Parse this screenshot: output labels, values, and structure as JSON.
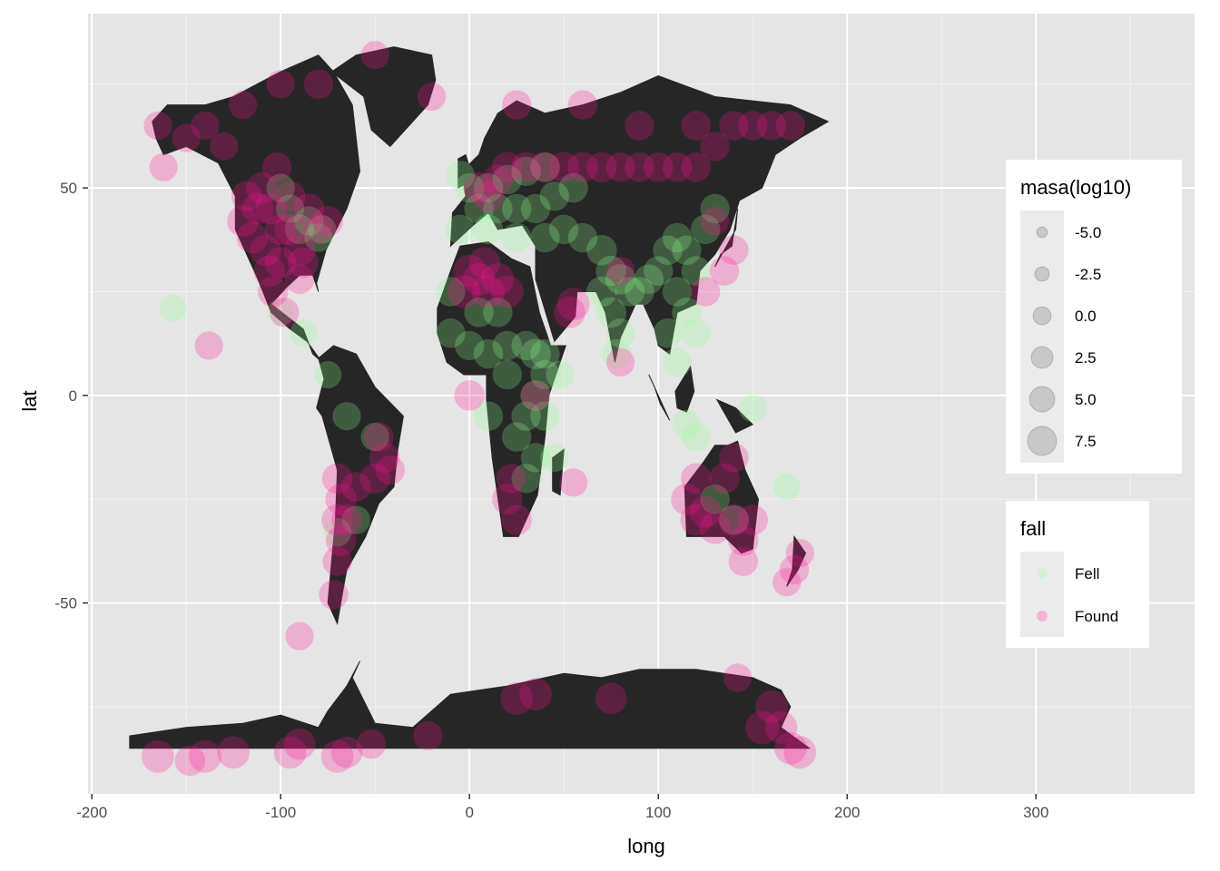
{
  "chart_data": {
    "type": "scatter",
    "xlabel": "long",
    "ylabel": "lat",
    "xlim": [
      -202,
      384
    ],
    "ylim": [
      -96,
      92
    ],
    "x_ticks": [
      -200,
      -100,
      0,
      100,
      200,
      300
    ],
    "x_tick_labels": [
      "-200",
      "-100",
      "0",
      "100",
      "200",
      "300"
    ],
    "y_ticks": [
      -50,
      0,
      50
    ],
    "y_tick_labels": [
      "-50",
      "0",
      "50"
    ],
    "grid": true,
    "background": "#e5e5e5",
    "land_color": "#262626",
    "legends": {
      "size": {
        "title": "masa(log10)",
        "labels": [
          "-5.0",
          "-2.5",
          "0.0",
          "2.5",
          "5.0",
          "7.5"
        ],
        "values": [
          -5.0,
          -2.5,
          0.0,
          2.5,
          5.0,
          7.5
        ]
      },
      "color": {
        "title": "fall",
        "labels": [
          "Fell",
          "Found"
        ],
        "colors": [
          "#90ff90",
          "#ff1493"
        ]
      }
    },
    "series": [
      {
        "name": "Fell",
        "color": "#90ff90",
        "points": [
          [
            -100,
            50,
            2.5
          ],
          [
            -95,
            45,
            2.5
          ],
          [
            -90,
            40,
            3
          ],
          [
            -80,
            38,
            2.5
          ],
          [
            -85,
            42,
            3
          ],
          [
            -78,
            40,
            2.5
          ],
          [
            -157,
            21,
            2
          ],
          [
            -100,
            20,
            2
          ],
          [
            -88,
            15,
            2
          ],
          [
            -75,
            5,
            2
          ],
          [
            -65,
            -5,
            2.5
          ],
          [
            -50,
            -10,
            2.5
          ],
          [
            -60,
            -30,
            2.5
          ],
          [
            -70,
            -33,
            2.5
          ],
          [
            0,
            50,
            3
          ],
          [
            10,
            50,
            3
          ],
          [
            20,
            52,
            3
          ],
          [
            30,
            54,
            3
          ],
          [
            40,
            55,
            3
          ],
          [
            -5,
            53,
            3
          ],
          [
            5,
            45,
            3
          ],
          [
            15,
            45,
            3
          ],
          [
            25,
            45,
            3
          ],
          [
            35,
            45,
            3
          ],
          [
            45,
            48,
            3
          ],
          [
            55,
            50,
            3
          ],
          [
            -5,
            40,
            3
          ],
          [
            10,
            40,
            3
          ],
          [
            25,
            38,
            3
          ],
          [
            40,
            38,
            3
          ],
          [
            50,
            40,
            3
          ],
          [
            60,
            38,
            3
          ],
          [
            70,
            35,
            3.5
          ],
          [
            75,
            30,
            3.5
          ],
          [
            80,
            28,
            3.5
          ],
          [
            85,
            25,
            3
          ],
          [
            75,
            20,
            3.5
          ],
          [
            80,
            15,
            3
          ],
          [
            78,
            10,
            3
          ],
          [
            70,
            25,
            3.5
          ],
          [
            90,
            25,
            3
          ],
          [
            95,
            28,
            3
          ],
          [
            100,
            30,
            3
          ],
          [
            105,
            35,
            3
          ],
          [
            110,
            38,
            3
          ],
          [
            115,
            35,
            3
          ],
          [
            120,
            30,
            3
          ],
          [
            125,
            40,
            3
          ],
          [
            130,
            45,
            3
          ],
          [
            110,
            25,
            3
          ],
          [
            115,
            20,
            3
          ],
          [
            105,
            15,
            3
          ],
          [
            120,
            15,
            3
          ],
          [
            110,
            8,
            3
          ],
          [
            -10,
            15,
            3
          ],
          [
            0,
            12,
            3
          ],
          [
            10,
            10,
            3
          ],
          [
            20,
            12,
            3
          ],
          [
            30,
            12,
            3
          ],
          [
            35,
            10,
            3.5
          ],
          [
            40,
            5,
            3
          ],
          [
            35,
            0,
            3.5
          ],
          [
            30,
            -5,
            3
          ],
          [
            25,
            -10,
            3
          ],
          [
            35,
            -15,
            3
          ],
          [
            30,
            -20,
            3
          ],
          [
            40,
            -5,
            3
          ],
          [
            45,
            -15,
            2.5
          ],
          [
            -10,
            25,
            3
          ],
          [
            5,
            20,
            3
          ],
          [
            15,
            20,
            3
          ],
          [
            20,
            5,
            3
          ],
          [
            10,
            -5,
            3
          ],
          [
            40,
            10,
            3
          ],
          [
            48,
            5,
            2.5
          ],
          [
            150,
            -3,
            2.5
          ],
          [
            168,
            -22,
            2
          ],
          [
            115,
            -7,
            3
          ],
          [
            140,
            -30,
            3
          ],
          [
            120,
            -10,
            3
          ],
          [
            130,
            -25,
            3
          ]
        ]
      },
      {
        "name": "Found",
        "color": "#ff1493",
        "points": [
          [
            -165,
            65,
            2.5
          ],
          [
            -150,
            62,
            2.5
          ],
          [
            -140,
            65,
            2.5
          ],
          [
            -130,
            60,
            2.5
          ],
          [
            -162,
            55,
            2.5
          ],
          [
            -120,
            70,
            2.5
          ],
          [
            -80,
            75,
            3
          ],
          [
            -50,
            82,
            2.5
          ],
          [
            -20,
            72,
            2.5
          ],
          [
            -100,
            75,
            2.5
          ],
          [
            -110,
            50,
            4
          ],
          [
            -105,
            45,
            4
          ],
          [
            -100,
            40,
            4
          ],
          [
            -108,
            35,
            4
          ],
          [
            -115,
            38,
            4
          ],
          [
            -112,
            45,
            4
          ],
          [
            -95,
            40,
            4
          ],
          [
            -90,
            35,
            4
          ],
          [
            -100,
            32,
            4
          ],
          [
            -106,
            30,
            4
          ],
          [
            -104,
            25,
            3.5
          ],
          [
            -98,
            20,
            3
          ],
          [
            -85,
            45,
            3.5
          ],
          [
            -80,
            40,
            3.5
          ],
          [
            -75,
            42,
            3.5
          ],
          [
            -88,
            32,
            3.5
          ],
          [
            -95,
            48,
            3.5
          ],
          [
            -120,
            42,
            4
          ],
          [
            -118,
            48,
            3.5
          ],
          [
            -102,
            55,
            3
          ],
          [
            -90,
            28,
            3
          ],
          [
            -138,
            12,
            2.5
          ],
          [
            -90,
            -58,
            2.5
          ],
          [
            -70,
            -20,
            3.5
          ],
          [
            -68,
            -25,
            4
          ],
          [
            -70,
            -30,
            4
          ],
          [
            -68,
            -35,
            3.5
          ],
          [
            -70,
            -40,
            3
          ],
          [
            -72,
            -48,
            3
          ],
          [
            -65,
            -30,
            3.5
          ],
          [
            -60,
            -22,
            3
          ],
          [
            -45,
            -15,
            3.5
          ],
          [
            -50,
            -20,
            3.5
          ],
          [
            -42,
            -18,
            3
          ],
          [
            -48,
            -10,
            3
          ],
          [
            0,
            30,
            4.5
          ],
          [
            -3,
            25,
            4.5
          ],
          [
            5,
            28,
            4.5
          ],
          [
            10,
            25,
            4.5
          ],
          [
            15,
            28,
            4.5
          ],
          [
            20,
            25,
            4.5
          ],
          [
            8,
            32,
            4
          ],
          [
            55,
            22,
            4.5
          ],
          [
            53,
            20,
            4
          ],
          [
            0,
            0,
            3.5
          ],
          [
            35,
            0,
            3
          ],
          [
            5,
            50,
            4
          ],
          [
            10,
            48,
            4
          ],
          [
            15,
            52,
            3.5
          ],
          [
            20,
            55,
            3.5
          ],
          [
            30,
            55,
            3.5
          ],
          [
            40,
            55,
            3.5
          ],
          [
            50,
            55,
            3.5
          ],
          [
            60,
            55,
            3.5
          ],
          [
            70,
            55,
            3.5
          ],
          [
            80,
            55,
            3
          ],
          [
            90,
            55,
            3
          ],
          [
            100,
            55,
            3
          ],
          [
            110,
            55,
            3
          ],
          [
            120,
            55,
            3
          ],
          [
            130,
            60,
            3
          ],
          [
            140,
            65,
            3
          ],
          [
            150,
            65,
            3
          ],
          [
            160,
            65,
            3
          ],
          [
            170,
            65,
            3
          ],
          [
            25,
            70,
            3
          ],
          [
            60,
            70,
            3
          ],
          [
            90,
            65,
            3
          ],
          [
            120,
            65,
            3
          ],
          [
            20,
            -25,
            3.5
          ],
          [
            25,
            -30,
            3.5
          ],
          [
            22,
            -20,
            3
          ],
          [
            55,
            -21,
            2.5
          ],
          [
            80,
            8,
            2.5
          ],
          [
            80,
            30,
            2.5
          ],
          [
            140,
            35,
            3
          ],
          [
            135,
            30,
            3
          ],
          [
            125,
            25,
            3
          ],
          [
            130,
            42,
            2.5
          ],
          [
            115,
            -25,
            4
          ],
          [
            120,
            -30,
            4
          ],
          [
            125,
            -28,
            4
          ],
          [
            130,
            -32,
            4
          ],
          [
            140,
            -30,
            4
          ],
          [
            145,
            -35,
            3.5
          ],
          [
            120,
            -20,
            3.5
          ],
          [
            135,
            -20,
            3.5
          ],
          [
            140,
            -15,
            3
          ],
          [
            150,
            -30,
            3.5
          ],
          [
            145,
            -40,
            3
          ],
          [
            172,
            -42,
            3
          ],
          [
            175,
            -38,
            2.5
          ],
          [
            168,
            -45,
            2.5
          ],
          [
            -165,
            -87,
            4.5
          ],
          [
            -148,
            -88,
            3.5
          ],
          [
            -140,
            -87,
            4.5
          ],
          [
            -125,
            -86,
            4.5
          ],
          [
            -95,
            -86,
            4.5
          ],
          [
            -90,
            -84,
            4
          ],
          [
            -70,
            -87,
            4.5
          ],
          [
            -65,
            -86,
            4
          ],
          [
            -52,
            -84,
            3
          ],
          [
            -22,
            -82,
            3
          ],
          [
            25,
            -73,
            4.5
          ],
          [
            35,
            -72,
            4.5
          ],
          [
            75,
            -73,
            4
          ],
          [
            142,
            -68,
            2.5
          ],
          [
            155,
            -80,
            5
          ],
          [
            160,
            -75,
            4.5
          ],
          [
            165,
            -80,
            4.5
          ],
          [
            170,
            -85,
            4.5
          ],
          [
            175,
            -86,
            4.5
          ]
        ]
      }
    ]
  }
}
